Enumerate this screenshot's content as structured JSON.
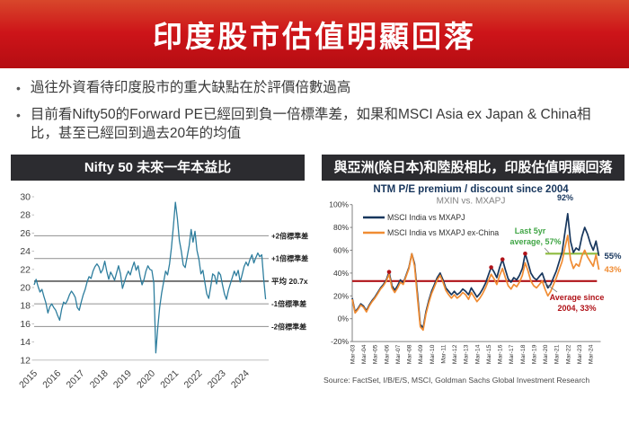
{
  "header": {
    "title": "印度股市估值明顯回落",
    "background_color": "#cd1419"
  },
  "bullets": [
    "過往外資看待印度股市的重大缺點在於評價倍數過高",
    "目前看Nifty50的Forward PE已經回到負一倍標準差，如果和MSCI Asia ex Japan & China相比，甚至已經回到過去20年的均值"
  ],
  "chart_data": [
    {
      "type": "line",
      "name": "nifty-forward-pe",
      "banner": "Nifty 50 未來一年本益比",
      "x_start": 2015.0,
      "x_step_months": 1,
      "x_tick_labels": [
        "2015",
        "2016",
        "2017",
        "2018",
        "2019",
        "2020",
        "2021",
        "2022",
        "2023",
        "2024"
      ],
      "y_ticks": [
        30,
        28,
        26,
        24,
        22,
        20,
        18,
        16,
        14,
        12
      ],
      "ylim": [
        12,
        30
      ],
      "grid": false,
      "series": [
        {
          "name": "Nifty 50 forward 12m P/E",
          "color": "#2e7e9e",
          "values": [
            20.3,
            20.9,
            20.1,
            19.5,
            19.8,
            19.0,
            18.3,
            17.2,
            17.9,
            18.2,
            17.8,
            17.5,
            16.9,
            16.4,
            17.6,
            18.4,
            18.2,
            18.6,
            19.2,
            19.6,
            19.3,
            18.9,
            17.8,
            17.5,
            18.4,
            19.2,
            19.8,
            20.6,
            21.2,
            21.0,
            21.8,
            22.3,
            22.6,
            22.3,
            21.6,
            22.0,
            22.9,
            21.8,
            20.9,
            21.7,
            21.3,
            20.8,
            21.6,
            22.4,
            21.5,
            19.9,
            20.6,
            21.3,
            21.8,
            21.4,
            22.2,
            22.8,
            21.9,
            22.4,
            21.2,
            20.3,
            20.9,
            21.8,
            22.4,
            22.0,
            21.9,
            20.5,
            12.8,
            15.5,
            17.8,
            19.4,
            20.6,
            21.8,
            21.4,
            22.6,
            24.4,
            26.8,
            29.4,
            27.6,
            25.2,
            24.0,
            22.5,
            22.2,
            23.4,
            24.6,
            26.4,
            25.0,
            26.2,
            24.1,
            23.1,
            21.5,
            21.9,
            20.6,
            19.3,
            18.8,
            20.1,
            21.5,
            21.3,
            20.4,
            21.7,
            21.4,
            20.3,
            19.3,
            18.7,
            19.7,
            20.4,
            21.1,
            21.8,
            21.3,
            21.9,
            20.6,
            21.4,
            22.3,
            22.8,
            22.4,
            23.1,
            23.6,
            22.7,
            23.3,
            23.8,
            23.4,
            23.6,
            21.0,
            18.7
          ]
        }
      ],
      "ref_lines": [
        {
          "label": "+2倍標準差",
          "value": 25.7,
          "color": "#9d9d9d",
          "bold": false
        },
        {
          "label": "+1倍標準差",
          "value": 23.2,
          "color": "#9d9d9d",
          "bold": false
        },
        {
          "label": "平均 20.7x",
          "value": 20.7,
          "color": "#595959",
          "bold": true
        },
        {
          "label": "-1倍標準差",
          "value": 18.2,
          "color": "#9d9d9d",
          "bold": false
        },
        {
          "label": "-2倍標準差",
          "value": 15.7,
          "color": "#9d9d9d",
          "bold": false
        }
      ]
    },
    {
      "type": "line",
      "name": "india-pe-premium-discount",
      "banner": "與亞洲(除日本)和陸股相比，印股估值明顯回落",
      "title": "NTM P/E premium / discount since 2004",
      "subtitle": "MXIN vs. MXAPJ",
      "title_color": "#17365d",
      "subtitle_color": "#7f7f7f",
      "x_start": 2003.17,
      "x_step_years": 0.25,
      "x_tick_labels": [
        "Mar-03",
        "Mar-04",
        "Mar-05",
        "Mar-06",
        "Mar-07",
        "Mar-08",
        "Mar-09",
        "Mar-10",
        "Mar-11",
        "Mar-12",
        "Mar-13",
        "Mar-14",
        "Mar-15",
        "Mar-16",
        "Mar-17",
        "Mar-18",
        "Mar-19",
        "Mar-20",
        "Mar-21",
        "Mar-22",
        "Mar-23",
        "Mar-24"
      ],
      "y_tick_labels": [
        "100%",
        "80%",
        "60%",
        "40%",
        "20%",
        "0%",
        "-20%"
      ],
      "ylim": [
        -20,
        100
      ],
      "grid": false,
      "legend_position": "top-left",
      "series": [
        {
          "name": "MSCI India vs MXAPJ",
          "color": "#17365d",
          "values": [
            18,
            6,
            9,
            13,
            11,
            7,
            12,
            16,
            19,
            23,
            27,
            30,
            34,
            41,
            29,
            25,
            29,
            34,
            31,
            38,
            45,
            57,
            48,
            22,
            -5,
            -8,
            6,
            16,
            24,
            30,
            36,
            40,
            34,
            27,
            24,
            21,
            24,
            21,
            23,
            26,
            24,
            21,
            27,
            23,
            19,
            22,
            26,
            31,
            38,
            45,
            41,
            36,
            45,
            52,
            43,
            35,
            32,
            36,
            34,
            38,
            44,
            57,
            49,
            40,
            36,
            34,
            37,
            40,
            33,
            27,
            30,
            36,
            42,
            50,
            58,
            75,
            92,
            68,
            58,
            62,
            60,
            72,
            80,
            74,
            66,
            60,
            68,
            55
          ]
        },
        {
          "name": "MSCI India vs MXAPJ ex-China",
          "color": "#f08c33",
          "values": [
            17,
            5,
            8,
            12,
            10,
            6,
            11,
            15,
            18,
            22,
            26,
            29,
            33,
            39,
            27,
            23,
            27,
            32,
            30,
            37,
            44,
            57,
            46,
            18,
            -7,
            -10,
            4,
            14,
            22,
            28,
            34,
            38,
            32,
            25,
            21,
            18,
            21,
            18,
            20,
            23,
            21,
            17,
            23,
            19,
            15,
            18,
            22,
            27,
            33,
            39,
            35,
            30,
            38,
            44,
            36,
            29,
            26,
            30,
            28,
            32,
            38,
            49,
            42,
            33,
            29,
            27,
            30,
            33,
            26,
            20,
            24,
            30,
            36,
            43,
            50,
            62,
            73,
            52,
            44,
            48,
            46,
            55,
            60,
            54,
            50,
            46,
            56,
            43
          ]
        }
      ],
      "avg_line": {
        "value": 33,
        "color": "#b01218",
        "label_lines": [
          "Average since",
          "2004,  33%"
        ]
      },
      "last5_line": {
        "value": 57,
        "x_from": 2020.2,
        "color": "#8dbb3f",
        "label_lines": [
          "Last 5yr",
          "average, 57%"
        ],
        "label_color": "#3fa544"
      },
      "peak_label": {
        "text": "92%",
        "x": 2021.95,
        "color": "#17365d"
      },
      "end_labels": [
        {
          "text": "55%",
          "y": 55,
          "color": "#17365d"
        },
        {
          "text": "43%",
          "y": 43,
          "color": "#f08c33"
        }
      ],
      "marker_dots": {
        "color": "#b01218",
        "points": [
          [
            2006.42,
            41
          ],
          [
            2015.42,
            45
          ],
          [
            2016.42,
            52
          ],
          [
            2018.42,
            57
          ]
        ]
      },
      "source": "Source: FactSet, I/B/E/S, MSCI, Goldman Sachs Global Investment Research"
    }
  ]
}
